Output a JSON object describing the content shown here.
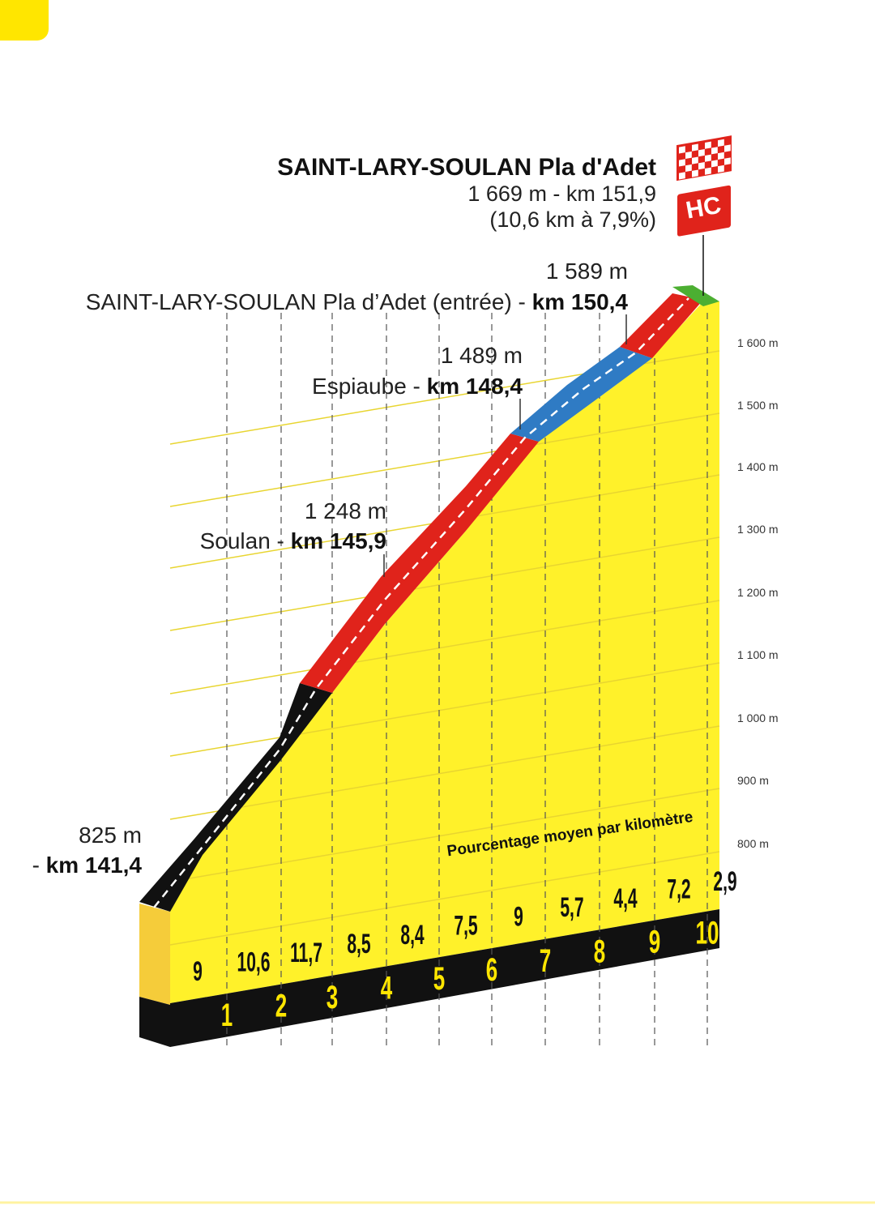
{
  "finish": {
    "name": "SAINT-LARY-SOULAN Pla d'Adet",
    "line1": "1 669 m - km 151,9",
    "line2": "(10,6 km à 7,9%)",
    "category": "HC"
  },
  "waypoints": [
    {
      "altitude": "1 589 m",
      "name": "SAINT-LARY-SOULAN Pla d’Adet (entrée) -",
      "km": "km 150,4"
    },
    {
      "altitude": "1 489 m",
      "name": "Espiaube -",
      "km": "km 148,4"
    },
    {
      "altitude": "1 248 m",
      "name": "Soulan -",
      "km": "km 145,9"
    },
    {
      "altitude": "825 m",
      "name": "-",
      "km": "km 141,4"
    }
  ],
  "altitude_ticks": [
    "1 600 m",
    "1 500 m",
    "1 400 m",
    "1 300 m",
    "1 200 m",
    "1 100 m",
    "1 000 m",
    "900 m",
    "800 m"
  ],
  "gradient_caption": "Pourcentage moyen par kilomètre",
  "gradients": [
    "9",
    "10,6",
    "11,7",
    "8,5",
    "8,4",
    "7,5",
    "9",
    "5,7",
    "4,4",
    "7,2",
    "2,9"
  ],
  "km_markers": [
    "1",
    "2",
    "3",
    "4",
    "5",
    "6",
    "7",
    "8",
    "9",
    "10"
  ]
}
